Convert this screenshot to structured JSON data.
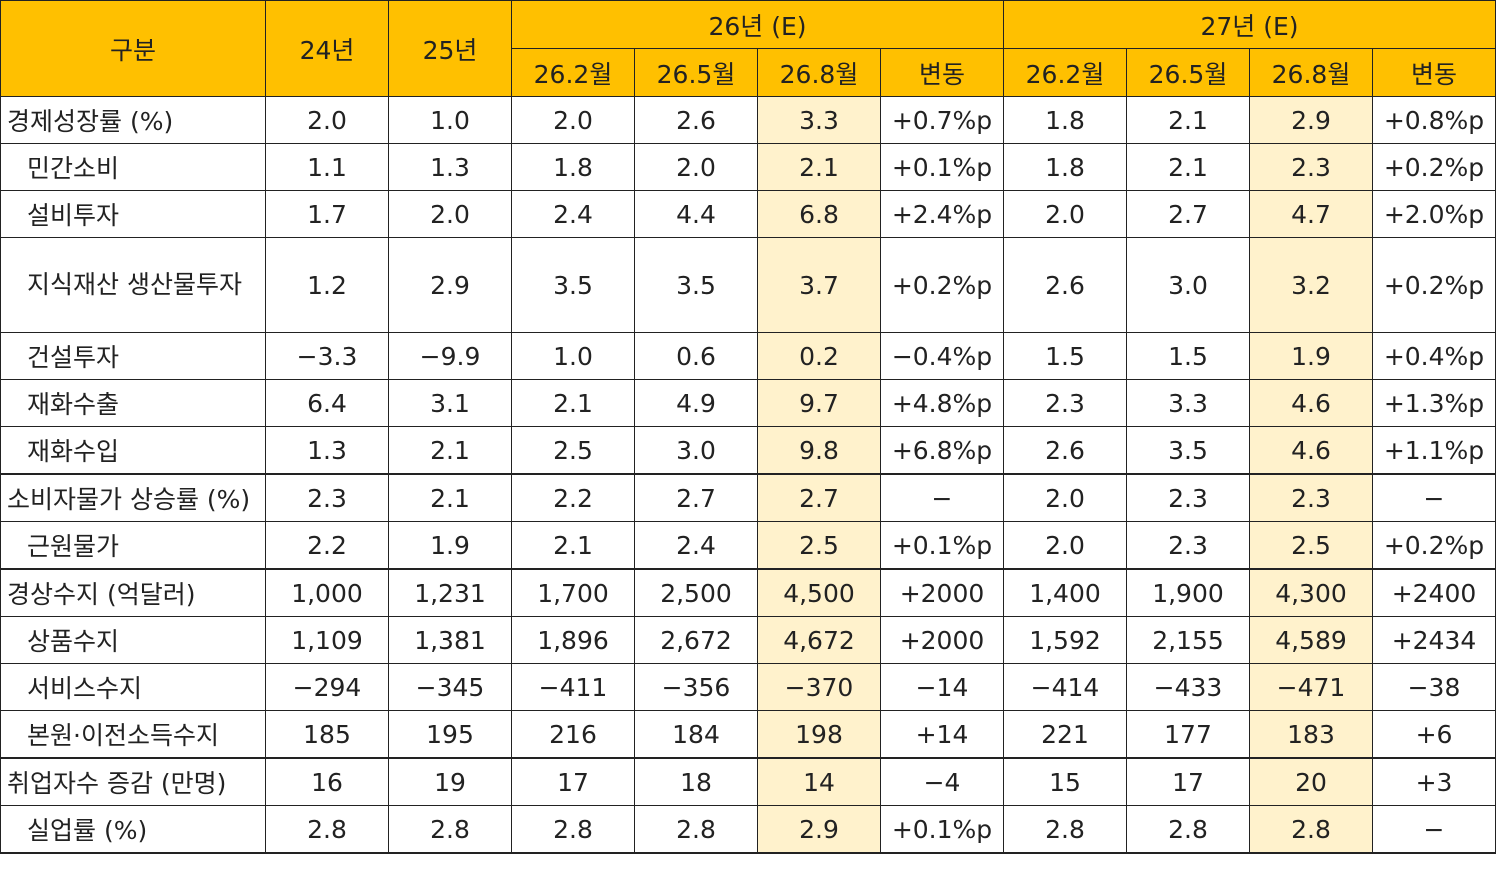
{
  "chart_data": {
    "type": "table",
    "header": {
      "label": "구분",
      "y24": "24년",
      "y25": "25년",
      "g26": "26년 (E)",
      "g27": "27년 (E)",
      "sub": [
        "26.2월",
        "26.5월",
        "26.8월",
        "변동",
        "26.2월",
        "26.5월",
        "26.8월",
        "변동"
      ]
    },
    "rows": [
      {
        "label": "경제성장률 (%)",
        "values": [
          "2.0",
          "1.0",
          "2.0",
          "2.6",
          "3.3",
          "+0.7%p",
          "1.8",
          "2.1",
          "2.9",
          "+0.8%p"
        ]
      },
      {
        "label": "민간소비",
        "values": [
          "1.1",
          "1.3",
          "1.8",
          "2.0",
          "2.1",
          "+0.1%p",
          "1.8",
          "2.1",
          "2.3",
          "+0.2%p"
        ]
      },
      {
        "label": "설비투자",
        "values": [
          "1.7",
          "2.0",
          "2.4",
          "4.4",
          "6.8",
          "+2.4%p",
          "2.0",
          "2.7",
          "4.7",
          "+2.0%p"
        ]
      },
      {
        "label": "지식재산 생산물투자",
        "values": [
          "1.2",
          "2.9",
          "3.5",
          "3.5",
          "3.7",
          "+0.2%p",
          "2.6",
          "3.0",
          "3.2",
          "+0.2%p"
        ]
      },
      {
        "label": "건설투자",
        "values": [
          "−3.3",
          "−9.9",
          "1.0",
          "0.6",
          "0.2",
          "−0.4%p",
          "1.5",
          "1.5",
          "1.9",
          "+0.4%p"
        ]
      },
      {
        "label": "재화수출",
        "values": [
          "6.4",
          "3.1",
          "2.1",
          "4.9",
          "9.7",
          "+4.8%p",
          "2.3",
          "3.3",
          "4.6",
          "+1.3%p"
        ]
      },
      {
        "label": "재화수입",
        "values": [
          "1.3",
          "2.1",
          "2.5",
          "3.0",
          "9.8",
          "+6.8%p",
          "2.6",
          "3.5",
          "4.6",
          "+1.1%p"
        ]
      },
      {
        "label": "소비자물가 상승률 (%)",
        "values": [
          "2.3",
          "2.1",
          "2.2",
          "2.7",
          "2.7",
          "−",
          "2.0",
          "2.3",
          "2.3",
          "−"
        ]
      },
      {
        "label": "근원물가",
        "values": [
          "2.2",
          "1.9",
          "2.1",
          "2.4",
          "2.5",
          "+0.1%p",
          "2.0",
          "2.3",
          "2.5",
          "+0.2%p"
        ]
      },
      {
        "label": "경상수지 (억달러)",
        "values": [
          "1,000",
          "1,231",
          "1,700",
          "2,500",
          "4,500",
          "+2000",
          "1,400",
          "1,900",
          "4,300",
          "+2400"
        ]
      },
      {
        "label": "상품수지",
        "values": [
          "1,109",
          "1,381",
          "1,896",
          "2,672",
          "4,672",
          "+2000",
          "1,592",
          "2,155",
          "4,589",
          "+2434"
        ]
      },
      {
        "label": "서비스수지",
        "values": [
          "−294",
          "−345",
          "−411",
          "−356",
          "−370",
          "−14",
          "−414",
          "−433",
          "−471",
          "−38"
        ]
      },
      {
        "label": "본원·이전소득수지",
        "values": [
          "185",
          "195",
          "216",
          "184",
          "198",
          "+14",
          "221",
          "177",
          "183",
          "+6"
        ]
      },
      {
        "label": "취업자수 증감 (만명)",
        "values": [
          "16",
          "19",
          "17",
          "18",
          "14",
          "−4",
          "15",
          "17",
          "20",
          "+3"
        ]
      },
      {
        "label": "실업률 (%)",
        "values": [
          "2.8",
          "2.8",
          "2.8",
          "2.8",
          "2.9",
          "+0.1%p",
          "2.8",
          "2.8",
          "2.8",
          "−"
        ]
      }
    ],
    "highlight_columns": [
      "26.8월"
    ],
    "colors": {
      "header": "#ffc000",
      "highlight": "#fff2cc",
      "border": "#222222"
    }
  }
}
